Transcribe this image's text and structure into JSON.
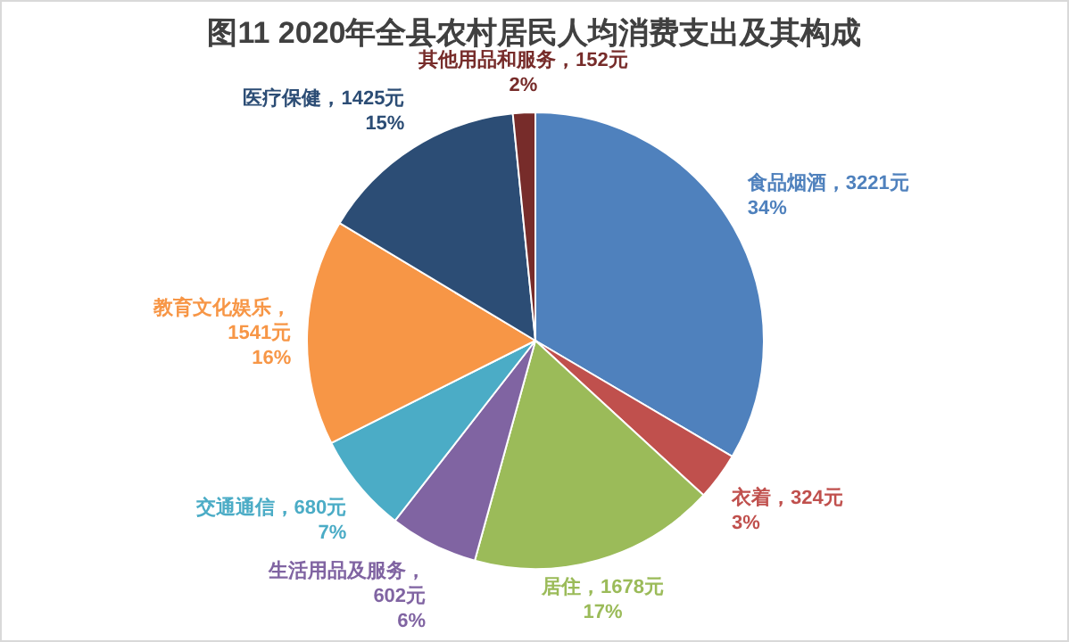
{
  "chart_data": {
    "type": "pie",
    "title": "图11   2020年全县农村居民人均消费支出及其构成",
    "categories": [
      "食品烟酒",
      "衣着",
      "居住",
      "生活用品及服务",
      "交通通信",
      "教育文化娱乐",
      "医疗保健",
      "其他用品和服务"
    ],
    "values": [
      3221,
      324,
      1678,
      602,
      680,
      1541,
      1425,
      152
    ],
    "value_labels": [
      "，3221元\n34%",
      "，324元\n3%",
      "，1678元\n17%",
      "，\n602元\n6%",
      "，680元\n7%",
      "，\n1541元\n16%",
      "，1425元\n15%",
      "，152元\n2%"
    ],
    "colors": [
      "#4f81bd",
      "#c0504d",
      "#9bbb59",
      "#8064a2",
      "#4bacc6",
      "#f79646",
      "#2c4d75",
      "#772c2a"
    ],
    "legend": false
  }
}
